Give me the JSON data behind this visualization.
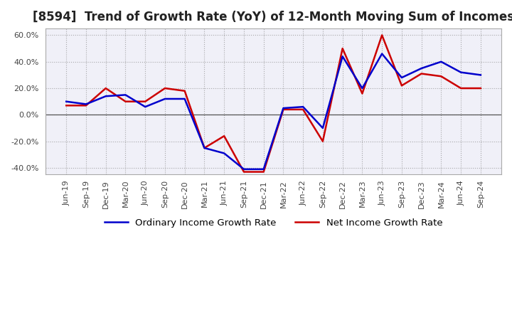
{
  "title": "[8594]  Trend of Growth Rate (YoY) of 12-Month Moving Sum of Incomes",
  "x_labels": [
    "Jun-19",
    "Sep-19",
    "Dec-19",
    "Mar-20",
    "Jun-20",
    "Sep-20",
    "Dec-20",
    "Mar-21",
    "Jun-21",
    "Sep-21",
    "Dec-21",
    "Mar-22",
    "Jun-22",
    "Sep-22",
    "Dec-22",
    "Mar-23",
    "Jun-23",
    "Sep-23",
    "Dec-23",
    "Mar-24",
    "Jun-24",
    "Sep-24"
  ],
  "ordinary_income": [
    0.1,
    0.08,
    0.14,
    0.15,
    0.06,
    0.12,
    0.12,
    -0.25,
    -0.29,
    -0.41,
    -0.41,
    0.05,
    0.06,
    -0.1,
    0.44,
    0.2,
    0.46,
    0.28,
    0.35,
    0.4,
    0.32,
    0.3
  ],
  "net_income": [
    0.07,
    0.07,
    0.2,
    0.1,
    0.1,
    0.2,
    0.18,
    -0.25,
    -0.16,
    -0.43,
    -0.43,
    0.04,
    0.04,
    -0.2,
    0.5,
    0.16,
    0.6,
    0.22,
    0.31,
    0.29,
    0.2,
    0.2
  ],
  "ordinary_color": "#0000cc",
  "net_color": "#cc0000",
  "ylim": [
    -0.45,
    0.65
  ],
  "yticks": [
    -0.4,
    -0.2,
    0.0,
    0.2,
    0.4,
    0.6
  ],
  "background_color": "#ffffff",
  "plot_bg_color": "#f0f0f8",
  "grid_color": "#888888",
  "title_fontsize": 12,
  "legend_fontsize": 9.5,
  "tick_fontsize": 8,
  "line_width": 1.8
}
